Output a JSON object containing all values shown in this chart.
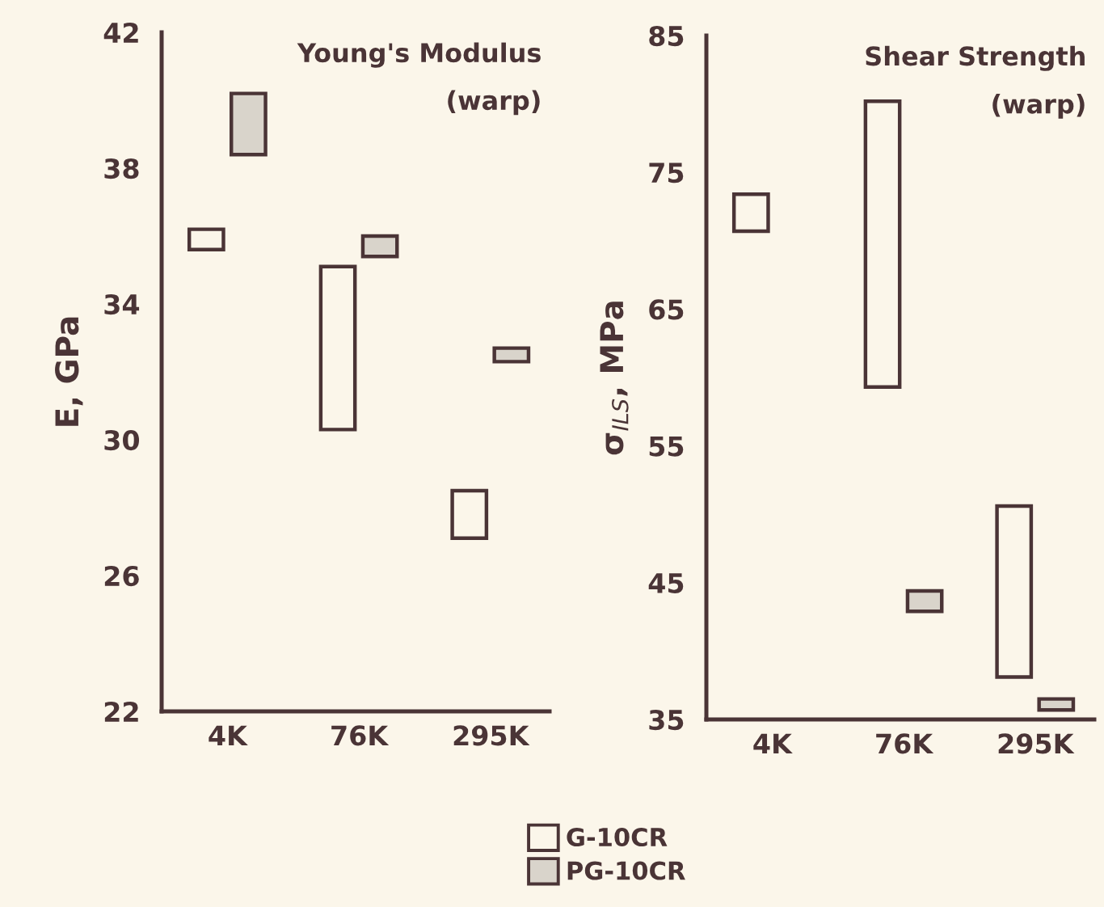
{
  "chart_data": [
    {
      "type": "bar",
      "title": "Young's Modulus",
      "subtitle": "(warp)",
      "ylabel": "E, GPa",
      "categories": [
        "4K",
        "76K",
        "295K"
      ],
      "ylim": [
        22,
        42
      ],
      "yticks": [
        22,
        26,
        30,
        34,
        38,
        42
      ],
      "grid": false,
      "legend": "bottom",
      "series": [
        {
          "name": "G-10CR",
          "color": "#fbf6ea",
          "base": [
            35.6,
            30.3,
            27.1
          ],
          "values": [
            0.6,
            4.8,
            1.4
          ]
        },
        {
          "name": "PG-10CR",
          "color": "#d9d4cb",
          "base": [
            38.4,
            35.4,
            32.3
          ],
          "values": [
            1.8,
            0.6,
            0.4
          ]
        }
      ]
    },
    {
      "type": "bar",
      "title": "Shear Strength",
      "subtitle": "(warp)",
      "ylabel": "σ$_{ILS}$, MPa",
      "categories": [
        "4K",
        "76K",
        "295K"
      ],
      "ylim": [
        35,
        85
      ],
      "yticks": [
        35,
        45,
        55,
        65,
        75,
        85
      ],
      "grid": false,
      "series": [
        {
          "color": "#fbf6ea",
          "base": [
            70.7,
            59.3,
            38.1
          ],
          "values": [
            2.7,
            20.9,
            12.5
          ]
        },
        {
          "color": "#d9d4cb",
          "base": [
            null,
            42.9,
            35.7
          ],
          "values": [
            null,
            1.5,
            0.8
          ]
        }
      ]
    }
  ]
}
